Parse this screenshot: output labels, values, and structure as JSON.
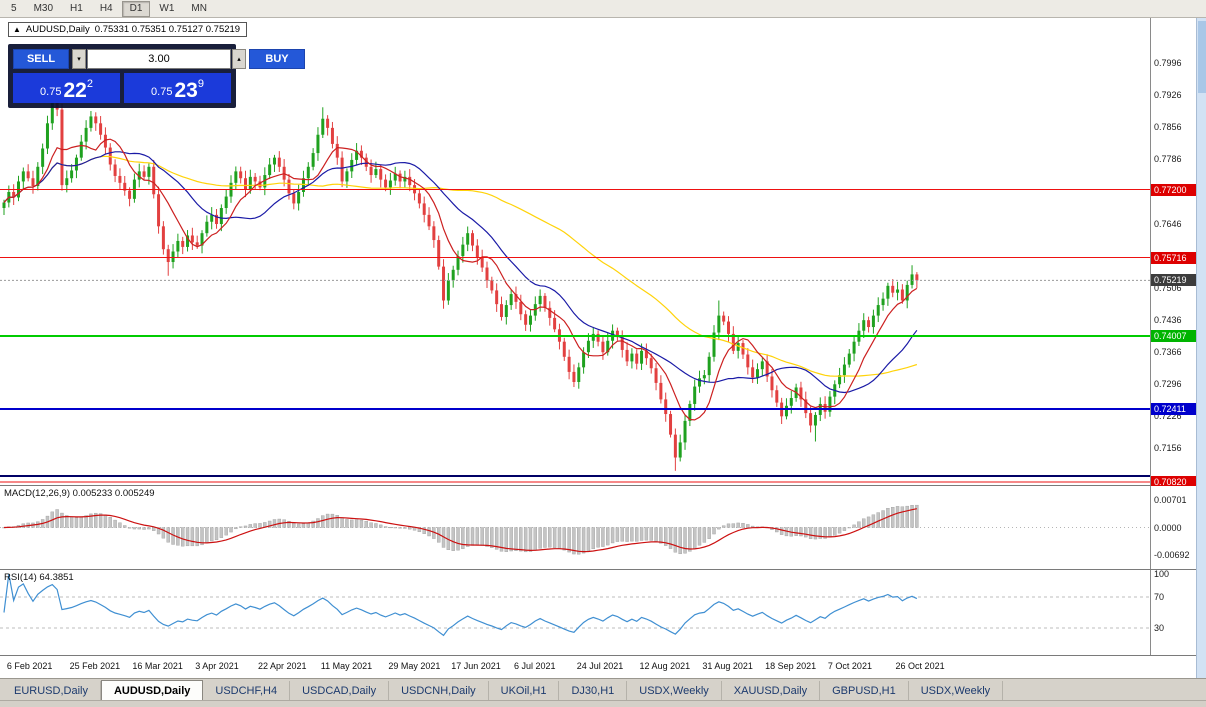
{
  "window": {
    "toolbar_periods": [
      "5",
      "M30",
      "H1",
      "H4",
      "D1",
      "W1",
      "MN"
    ],
    "active_period": "D1"
  },
  "icons": {
    "oct_toggle": "▲",
    "spin_up": "▴",
    "spin_down": "▾"
  },
  "chart": {
    "symbol_title": "AUDUSD,Daily",
    "ohlc": "0.75331 0.75351 0.75127 0.75219"
  },
  "trade_panel": {
    "sell_label": "SELL",
    "buy_label": "BUY",
    "volume": "3.00",
    "sell_small": "0.75",
    "sell_big": "22",
    "sell_sup": "2",
    "buy_small": "0.75",
    "buy_big": "23",
    "buy_sup": "9"
  },
  "indicators": {
    "macd_label": "MACD(12,26,9) 0.005233 0.005249",
    "macd_axis": [
      {
        "text": "0.00701",
        "v": 0.00701
      },
      {
        "text": "0.0000",
        "v": 0
      },
      {
        "text": "-0.00692",
        "v": -0.00692
      }
    ],
    "rsi_label": "RSI(14) 64.3851",
    "rsi_axis": [
      {
        "text": "100",
        "v": 100
      },
      {
        "text": "70",
        "v": 70
      },
      {
        "text": "30",
        "v": 30
      }
    ],
    "rsi_levels": [
      70,
      30
    ]
  },
  "colors": {
    "up": "#1fa11f",
    "down": "#e24040",
    "ma_yellow": "#ffd30a",
    "ma_navy": "#1a1aa6",
    "ma_red": "#cc2020",
    "macd_hist": "#c4c4c4",
    "macd_hist_edge": "#9e9e9e",
    "macd_signal": "#cc1111",
    "rsi_line": "#3f8fd2",
    "bid_line": "#9a9a9a"
  },
  "chart_data": {
    "type": "candlestick",
    "symbol": "AUDUSD",
    "timeframe": "Daily",
    "price_range_top": 0.8095,
    "price_range_bottom": 0.7075,
    "first_open": 0.768,
    "closes": [
      0.7692,
      0.7715,
      0.7703,
      0.7738,
      0.776,
      0.7745,
      0.7728,
      0.777,
      0.781,
      0.7865,
      0.792,
      0.7895,
      0.773,
      0.7745,
      0.7762,
      0.779,
      0.7825,
      0.7855,
      0.788,
      0.7865,
      0.784,
      0.7812,
      0.7775,
      0.775,
      0.7735,
      0.7718,
      0.77,
      0.7742,
      0.776,
      0.7748,
      0.777,
      0.771,
      0.764,
      0.759,
      0.7562,
      0.7585,
      0.7608,
      0.7595,
      0.762,
      0.7605,
      0.7598,
      0.7625,
      0.765,
      0.7665,
      0.7645,
      0.768,
      0.7705,
      0.7735,
      0.776,
      0.7745,
      0.772,
      0.7748,
      0.7738,
      0.7725,
      0.7752,
      0.7775,
      0.779,
      0.777,
      0.7742,
      0.7712,
      0.769,
      0.7715,
      0.7745,
      0.777,
      0.78,
      0.784,
      0.7875,
      0.7855,
      0.782,
      0.779,
      0.7738,
      0.776,
      0.7785,
      0.7805,
      0.779,
      0.777,
      0.7752,
      0.7765,
      0.7742,
      0.7725,
      0.774,
      0.7755,
      0.7738,
      0.7748,
      0.773,
      0.7712,
      0.769,
      0.7665,
      0.764,
      0.761,
      0.7552,
      0.7478,
      0.7522,
      0.7545,
      0.7575,
      0.76,
      0.7625,
      0.7598,
      0.7572,
      0.755,
      0.7522,
      0.75,
      0.747,
      0.7442,
      0.7468,
      0.7492,
      0.7475,
      0.7448,
      0.7425,
      0.7445,
      0.747,
      0.7488,
      0.7462,
      0.744,
      0.7415,
      0.7388,
      0.7355,
      0.7322,
      0.73,
      0.7332,
      0.7365,
      0.739,
      0.7405,
      0.7388,
      0.7365,
      0.739,
      0.7412,
      0.7398,
      0.737,
      0.7345,
      0.7362,
      0.734,
      0.7368,
      0.7352,
      0.733,
      0.7298,
      0.7262,
      0.723,
      0.7185,
      0.7135,
      0.7168,
      0.7215,
      0.7252,
      0.729,
      0.7308,
      0.7315,
      0.7355,
      0.7408,
      0.7445,
      0.7432,
      0.7405,
      0.7368,
      0.7385,
      0.736,
      0.7332,
      0.731,
      0.7328,
      0.7345,
      0.7312,
      0.7282,
      0.7255,
      0.7225,
      0.7248,
      0.7265,
      0.7288,
      0.7262,
      0.7232,
      0.7205,
      0.7228,
      0.7252,
      0.7235,
      0.7268,
      0.7295,
      0.7315,
      0.7338,
      0.7362,
      0.7388,
      0.7412,
      0.7435,
      0.742,
      0.7445,
      0.7468,
      0.7482,
      0.751,
      0.7495,
      0.7502,
      0.7478,
      0.7512,
      0.7535,
      0.75219
    ],
    "wick_overrides": {
      "10": [
        0.794,
        null
      ],
      "34": [
        null,
        0.7532
      ],
      "66": [
        0.79,
        null
      ],
      "91": [
        null,
        0.746
      ],
      "118": [
        null,
        0.7289
      ],
      "139": [
        null,
        0.7106
      ],
      "148": [
        0.7478,
        null
      ],
      "168": [
        null,
        0.717
      ],
      "188": [
        0.7555,
        null
      ],
      "189": [
        0.754,
        null
      ]
    },
    "ma_periods": {
      "slow_yellow": 55,
      "mid_navy": 21,
      "fast_red": 8
    },
    "price_axis_ticks": [
      "0.7996",
      "0.7926",
      "0.7856",
      "0.7786",
      "0.7716",
      "0.7646",
      "0.7576",
      "0.7506",
      "0.7436",
      "0.7366",
      "0.7296",
      "0.7226",
      "0.7156",
      "0.7086"
    ],
    "badges": [
      {
        "text": "0.77200",
        "price": 0.772,
        "color": "#dd0000"
      },
      {
        "text": "0.75716",
        "price": 0.75716,
        "color": "#dd0000"
      },
      {
        "text": "0.75219",
        "price": 0.75219,
        "color": "#3c3c3c"
      },
      {
        "text": "0.74007",
        "price": 0.74007,
        "color": "#00b400"
      },
      {
        "text": "0.72411",
        "price": 0.72411,
        "color": "#0000cc"
      },
      {
        "text": "0.70820",
        "price": 0.7082,
        "color": "#dd0000"
      }
    ],
    "hlines": [
      {
        "price": 0.772,
        "color": "#ee1111",
        "w": 1
      },
      {
        "price": 0.75716,
        "color": "#ee1111",
        "w": 1
      },
      {
        "price": 0.74007,
        "color": "#00cc00",
        "w": 2
      },
      {
        "price": 0.72411,
        "color": "#0000cc",
        "w": 2
      },
      {
        "price": 0.7095,
        "color": "#000066",
        "w": 2
      },
      {
        "price": 0.7082,
        "color": "#ee1111",
        "w": 1
      }
    ],
    "bid_price": 0.75219,
    "date_labels": [
      {
        "label": "6 Feb 2021",
        "i": 1
      },
      {
        "label": "25 Feb 2021",
        "i": 14
      },
      {
        "label": "16 Mar 2021",
        "i": 27
      },
      {
        "label": "3 Apr 2021",
        "i": 40
      },
      {
        "label": "22 Apr 2021",
        "i": 53
      },
      {
        "label": "11 May 2021",
        "i": 66
      },
      {
        "label": "29 May 2021",
        "i": 80
      },
      {
        "label": "17 Jun 2021",
        "i": 93
      },
      {
        "label": "6 Jul 2021",
        "i": 106
      },
      {
        "label": "24 Jul 2021",
        "i": 119
      },
      {
        "label": "12 Aug 2021",
        "i": 132
      },
      {
        "label": "31 Aug 2021",
        "i": 145
      },
      {
        "label": "18 Sep 2021",
        "i": 158
      },
      {
        "label": "7 Oct 2021",
        "i": 171
      },
      {
        "label": "26 Oct 2021",
        "i": 185
      }
    ]
  },
  "tabs": [
    {
      "label": "EURUSD,Daily",
      "active": false
    },
    {
      "label": "AUDUSD,Daily",
      "active": true
    },
    {
      "label": "USDCHF,H4",
      "active": false
    },
    {
      "label": "USDCAD,Daily",
      "active": false
    },
    {
      "label": "USDCNH,Daily",
      "active": false
    },
    {
      "label": "UKOil,H1",
      "active": false
    },
    {
      "label": "DJ30,H1",
      "active": false
    },
    {
      "label": "USDX,Weekly",
      "active": false
    },
    {
      "label": "XAUUSD,Daily",
      "active": false
    },
    {
      "label": "GBPUSD,H1",
      "active": false
    },
    {
      "label": "USDX,Weekly",
      "active": false
    }
  ]
}
